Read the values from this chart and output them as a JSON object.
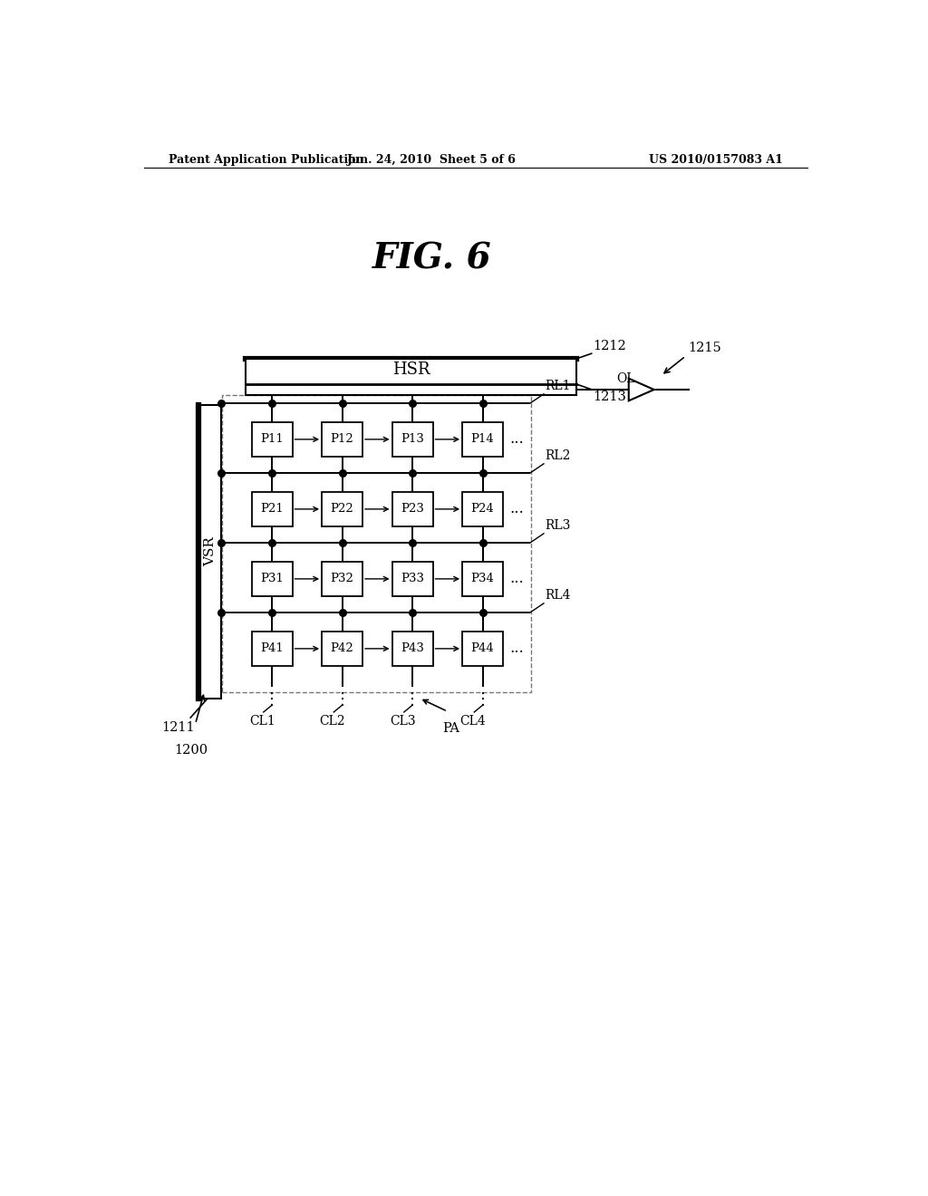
{
  "title": "FIG. 6",
  "header_left": "Patent Application Publication",
  "header_center": "Jun. 24, 2010  Sheet 5 of 6",
  "header_right": "US 2010/0157083 A1",
  "bg_color": "#ffffff",
  "pixel_rows": [
    [
      "P11",
      "P12",
      "P13",
      "P14"
    ],
    [
      "P21",
      "P22",
      "P23",
      "P24"
    ],
    [
      "P31",
      "P32",
      "P33",
      "P34"
    ],
    [
      "P41",
      "P42",
      "P43",
      "P44"
    ]
  ],
  "row_labels": [
    "RL1",
    "RL2",
    "RL3",
    "RL4"
  ],
  "col_labels": [
    "CL1",
    "CL2",
    "CL3",
    "CL4"
  ],
  "vsr_label": "VSR",
  "hsr_label": "HSR",
  "hsr_id_top": "1212",
  "hsr_id_bot": "1213",
  "vsr_id": "1211",
  "pa_label": "PA",
  "label_1200": "1200",
  "label_1215": "1215",
  "ol_label": "OL"
}
